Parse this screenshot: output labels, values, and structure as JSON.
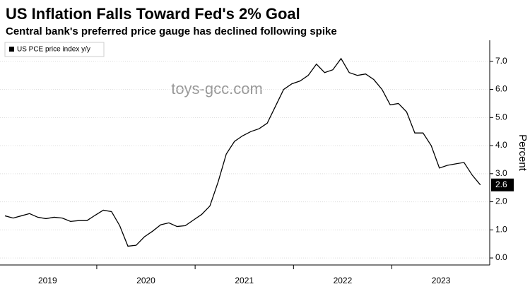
{
  "chart_data": {
    "type": "line",
    "title": "US Inflation Falls Toward Fed's 2% Goal",
    "subtitle": "Central bank's preferred price gauge has declined following spike",
    "y_label": "Percent",
    "watermark": "toys-gcc.com",
    "legend": "top-left",
    "grid": true,
    "x": [
      "2019-01",
      "2019-02",
      "2019-03",
      "2019-04",
      "2019-05",
      "2019-06",
      "2019-07",
      "2019-08",
      "2019-09",
      "2019-10",
      "2019-11",
      "2019-12",
      "2020-01",
      "2020-02",
      "2020-03",
      "2020-04",
      "2020-05",
      "2020-06",
      "2020-07",
      "2020-08",
      "2020-09",
      "2020-10",
      "2020-11",
      "2020-12",
      "2021-01",
      "2021-02",
      "2021-03",
      "2021-04",
      "2021-05",
      "2021-06",
      "2021-07",
      "2021-08",
      "2021-09",
      "2021-10",
      "2021-11",
      "2021-12",
      "2022-01",
      "2022-02",
      "2022-03",
      "2022-04",
      "2022-05",
      "2022-06",
      "2022-07",
      "2022-08",
      "2022-09",
      "2022-10",
      "2022-11",
      "2022-12",
      "2023-01",
      "2023-02",
      "2023-03",
      "2023-04",
      "2023-05",
      "2023-06",
      "2023-07",
      "2023-08",
      "2023-09",
      "2023-10",
      "2023-11"
    ],
    "xticks": [
      "2019",
      "2020",
      "2021",
      "2022",
      "2023"
    ],
    "series": [
      {
        "name": "US PCE price index y/y",
        "color": "#000000",
        "values": [
          1.5,
          1.42,
          1.5,
          1.58,
          1.45,
          1.4,
          1.45,
          1.42,
          1.3,
          1.33,
          1.33,
          1.52,
          1.7,
          1.65,
          1.15,
          0.42,
          0.45,
          0.75,
          0.95,
          1.18,
          1.25,
          1.12,
          1.15,
          1.35,
          1.55,
          1.85,
          2.7,
          3.7,
          4.15,
          4.35,
          4.5,
          4.6,
          4.8,
          5.4,
          6.0,
          6.2,
          6.3,
          6.5,
          6.9,
          6.6,
          6.7,
          7.1,
          6.6,
          6.5,
          6.55,
          6.35,
          6.0,
          5.45,
          5.5,
          5.2,
          4.45,
          4.45,
          4.0,
          3.2,
          3.3,
          3.35,
          3.4,
          2.95,
          2.6
        ]
      }
    ],
    "ylim": [
      -0.25,
      7.75
    ],
    "yticks": [
      {
        "value": 0,
        "label": "0.0"
      },
      {
        "value": 1,
        "label": "1.0"
      },
      {
        "value": 2,
        "label": "2.0"
      },
      {
        "value": 3,
        "label": "3.0"
      },
      {
        "value": 4,
        "label": "4.0"
      },
      {
        "value": 5,
        "label": "5.0"
      },
      {
        "value": 6,
        "label": "6.0"
      },
      {
        "value": 7,
        "label": "7.0"
      }
    ]
  }
}
